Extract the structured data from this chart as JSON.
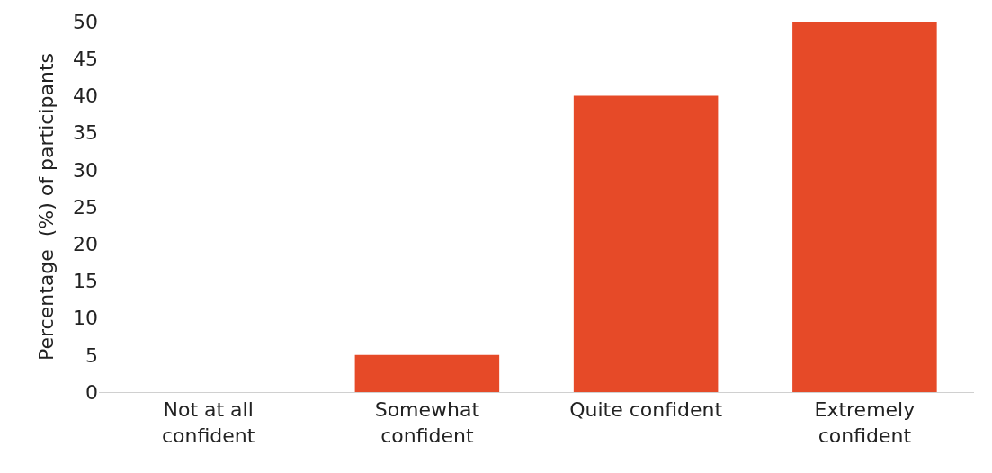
{
  "chart_data": {
    "type": "bar",
    "ylabel": "Percentage  (%) of participants",
    "categories": [
      "Not at all confident",
      "Somewhat confident",
      "Quite confident",
      "Extremely confident"
    ],
    "values": [
      0,
      5,
      40,
      50
    ],
    "color": "#e64a28",
    "ylim": [
      0,
      50
    ],
    "yticks": [
      0,
      5,
      10,
      15,
      20,
      25,
      30,
      35,
      40,
      45,
      50
    ]
  }
}
